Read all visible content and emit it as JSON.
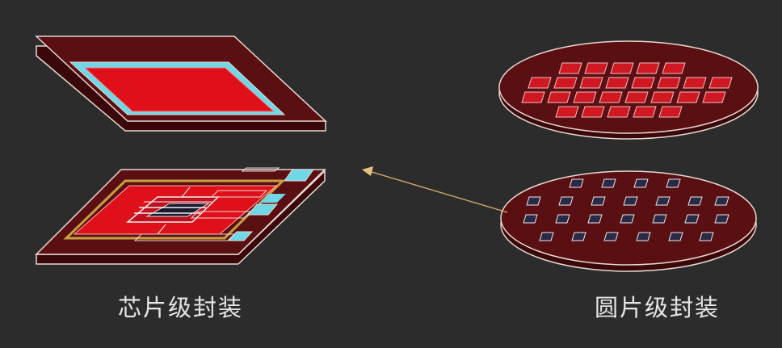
{
  "captions": {
    "chip_level": "芯片级封装",
    "wafer_level": "圆片级封装"
  },
  "colors": {
    "background": "#2c2c2c",
    "substrate": "#5a0f12",
    "outline": "#e8d8d0",
    "die_red": "#e0101a",
    "frame_cyan": "#6fd8e6",
    "gold_ring": "#c8a040",
    "arrow": "#d8b070"
  },
  "icons": {
    "chip_lid": "package-lid-icon",
    "chip_base": "package-base-icon",
    "wafer_top": "wafer-with-dies-icon",
    "wafer_bottom": "wafer-with-pads-icon",
    "arrow": "arrow-icon"
  }
}
